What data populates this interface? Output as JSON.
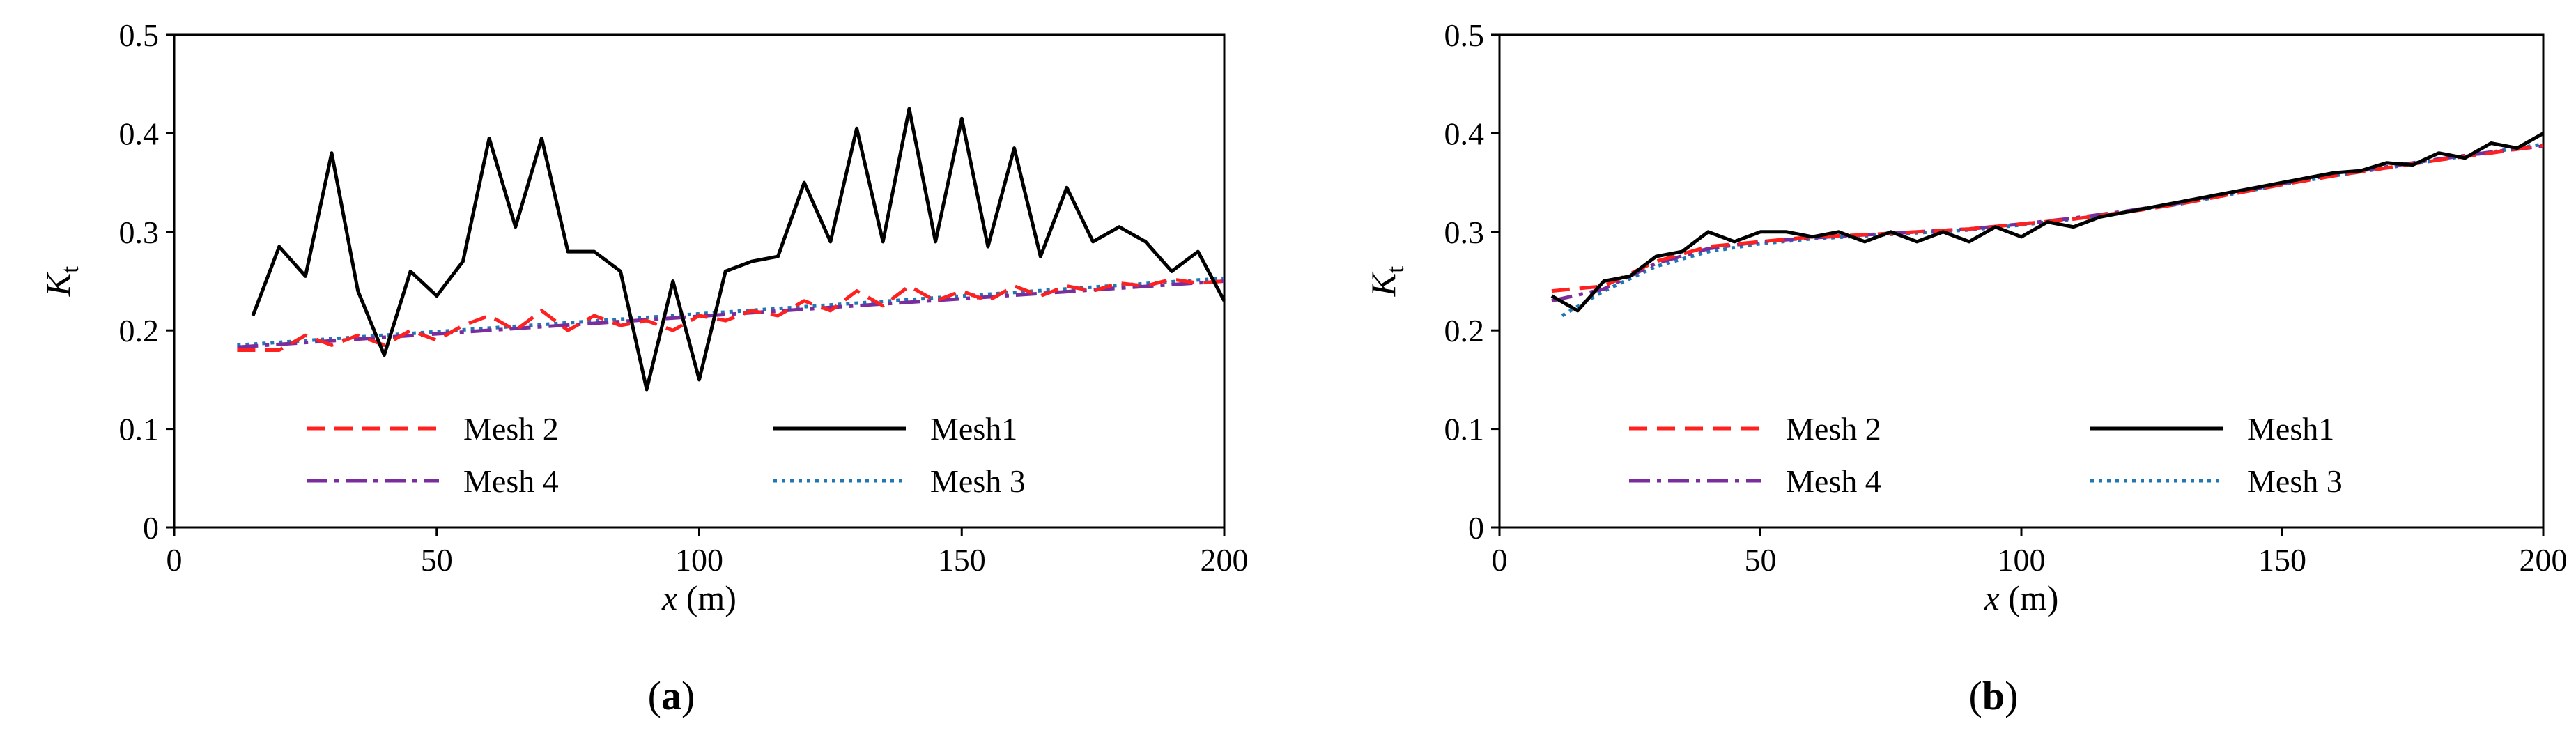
{
  "chart_data": [
    {
      "type": "line",
      "panel_label": "(a)",
      "panel_letter": "a",
      "xlabel": "x (m)",
      "xlabel_var": "x",
      "xlabel_unit": "(m)",
      "ylabel": "Kt",
      "ylabel_main": "K",
      "ylabel_sub": "t",
      "xlim": [
        0,
        200
      ],
      "ylim": [
        0,
        0.5
      ],
      "x_ticks": [
        0,
        50,
        100,
        150,
        200
      ],
      "x_tick_labels": [
        "0",
        "50",
        "100",
        "150",
        "200"
      ],
      "y_ticks": [
        0,
        0.1,
        0.2,
        0.3,
        0.4,
        0.5
      ],
      "y_tick_labels": [
        "0",
        "0.1",
        "0.2",
        "0.3",
        "0.4",
        "0.5"
      ],
      "legend_position": "bottom",
      "legend_order": [
        1,
        0,
        3,
        2
      ],
      "series": [
        {
          "name": "Mesh1",
          "color": "#000000",
          "style": "solid",
          "x": [
            15,
            20,
            25,
            30,
            35,
            40,
            45,
            50,
            55,
            60,
            65,
            70,
            75,
            80,
            85,
            90,
            95,
            100,
            105,
            110,
            115,
            120,
            125,
            130,
            135,
            140,
            145,
            150,
            155,
            160,
            165,
            170,
            175,
            180,
            185,
            190,
            195,
            200
          ],
          "y": [
            0.215,
            0.285,
            0.255,
            0.38,
            0.24,
            0.175,
            0.26,
            0.235,
            0.27,
            0.395,
            0.305,
            0.395,
            0.28,
            0.28,
            0.26,
            0.14,
            0.25,
            0.15,
            0.26,
            0.27,
            0.275,
            0.35,
            0.29,
            0.405,
            0.29,
            0.425,
            0.29,
            0.415,
            0.285,
            0.385,
            0.275,
            0.345,
            0.29,
            0.305,
            0.29,
            0.26,
            0.28,
            0.23
          ]
        },
        {
          "name": "Mesh 2",
          "color": "#ff2020",
          "style": "dashed",
          "x": [
            12,
            20,
            25,
            30,
            35,
            40,
            45,
            50,
            55,
            60,
            65,
            70,
            75,
            80,
            85,
            90,
            95,
            100,
            105,
            110,
            115,
            120,
            125,
            130,
            135,
            140,
            145,
            150,
            155,
            160,
            165,
            170,
            175,
            180,
            185,
            190,
            195,
            200
          ],
          "y": [
            0.18,
            0.18,
            0.195,
            0.185,
            0.195,
            0.185,
            0.2,
            0.19,
            0.205,
            0.215,
            0.2,
            0.22,
            0.2,
            0.215,
            0.205,
            0.21,
            0.2,
            0.215,
            0.21,
            0.22,
            0.215,
            0.23,
            0.22,
            0.24,
            0.225,
            0.245,
            0.23,
            0.24,
            0.23,
            0.245,
            0.235,
            0.245,
            0.24,
            0.248,
            0.245,
            0.252,
            0.248,
            0.25
          ]
        },
        {
          "name": "Mesh 3",
          "color": "#1f77b4",
          "style": "dotted",
          "x": [
            12,
            200
          ],
          "y": [
            0.185,
            0.253
          ]
        },
        {
          "name": "Mesh 4",
          "color": "#7a2e9e",
          "style": "dashdot",
          "x": [
            12,
            200
          ],
          "y": [
            0.183,
            0.25
          ]
        }
      ]
    },
    {
      "type": "line",
      "panel_label": "(b)",
      "panel_letter": "b",
      "xlabel": "x (m)",
      "xlabel_var": "x",
      "xlabel_unit": "(m)",
      "ylabel": "Kt",
      "ylabel_main": "K",
      "ylabel_sub": "t",
      "xlim": [
        0,
        200
      ],
      "ylim": [
        0,
        0.5
      ],
      "x_ticks": [
        0,
        50,
        100,
        150,
        200
      ],
      "x_tick_labels": [
        "0",
        "50",
        "100",
        "150",
        "200"
      ],
      "y_ticks": [
        0,
        0.1,
        0.2,
        0.3,
        0.4,
        0.5
      ],
      "y_tick_labels": [
        "0",
        "0.1",
        "0.2",
        "0.3",
        "0.4",
        "0.5"
      ],
      "legend_position": "bottom",
      "legend_order": [
        1,
        0,
        3,
        2
      ],
      "series": [
        {
          "name": "Mesh1",
          "color": "#000000",
          "style": "solid",
          "x": [
            10,
            15,
            20,
            25,
            30,
            35,
            40,
            45,
            50,
            55,
            60,
            65,
            70,
            75,
            80,
            85,
            90,
            95,
            100,
            105,
            110,
            115,
            120,
            125,
            130,
            135,
            140,
            145,
            150,
            155,
            160,
            165,
            170,
            175,
            180,
            185,
            190,
            195,
            200
          ],
          "y": [
            0.235,
            0.22,
            0.25,
            0.255,
            0.275,
            0.28,
            0.3,
            0.29,
            0.3,
            0.3,
            0.295,
            0.3,
            0.29,
            0.3,
            0.29,
            0.3,
            0.29,
            0.305,
            0.295,
            0.31,
            0.305,
            0.315,
            0.32,
            0.325,
            0.33,
            0.335,
            0.34,
            0.345,
            0.35,
            0.355,
            0.36,
            0.362,
            0.37,
            0.368,
            0.38,
            0.375,
            0.39,
            0.385,
            0.4
          ]
        },
        {
          "name": "Mesh 2",
          "color": "#ff2020",
          "style": "dashed",
          "x": [
            10,
            20,
            30,
            40,
            50,
            60,
            70,
            80,
            90,
            100,
            110,
            120,
            130,
            140,
            150,
            160,
            170,
            180,
            190,
            200
          ],
          "y": [
            0.24,
            0.245,
            0.27,
            0.285,
            0.29,
            0.295,
            0.297,
            0.3,
            0.303,
            0.308,
            0.313,
            0.32,
            0.328,
            0.338,
            0.348,
            0.357,
            0.365,
            0.373,
            0.38,
            0.388
          ]
        },
        {
          "name": "Mesh 3",
          "color": "#1f77b4",
          "style": "dotted",
          "x": [
            12,
            20,
            30,
            40,
            50,
            60,
            70,
            80,
            90,
            100,
            110,
            120,
            130,
            140,
            150,
            160,
            170,
            180,
            190,
            200
          ],
          "y": [
            0.215,
            0.24,
            0.265,
            0.28,
            0.288,
            0.293,
            0.296,
            0.299,
            0.302,
            0.307,
            0.313,
            0.32,
            0.328,
            0.338,
            0.348,
            0.357,
            0.365,
            0.373,
            0.381,
            0.389
          ]
        },
        {
          "name": "Mesh 4",
          "color": "#7a2e9e",
          "style": "dashdot",
          "x": [
            10,
            20,
            30,
            40,
            50,
            60,
            70,
            80,
            90,
            100,
            110,
            120,
            130,
            140,
            150,
            160,
            170,
            180,
            190,
            200
          ],
          "y": [
            0.23,
            0.242,
            0.268,
            0.283,
            0.29,
            0.294,
            0.297,
            0.3,
            0.303,
            0.308,
            0.314,
            0.321,
            0.329,
            0.339,
            0.349,
            0.358,
            0.366,
            0.374,
            0.381,
            0.387
          ]
        }
      ]
    }
  ]
}
